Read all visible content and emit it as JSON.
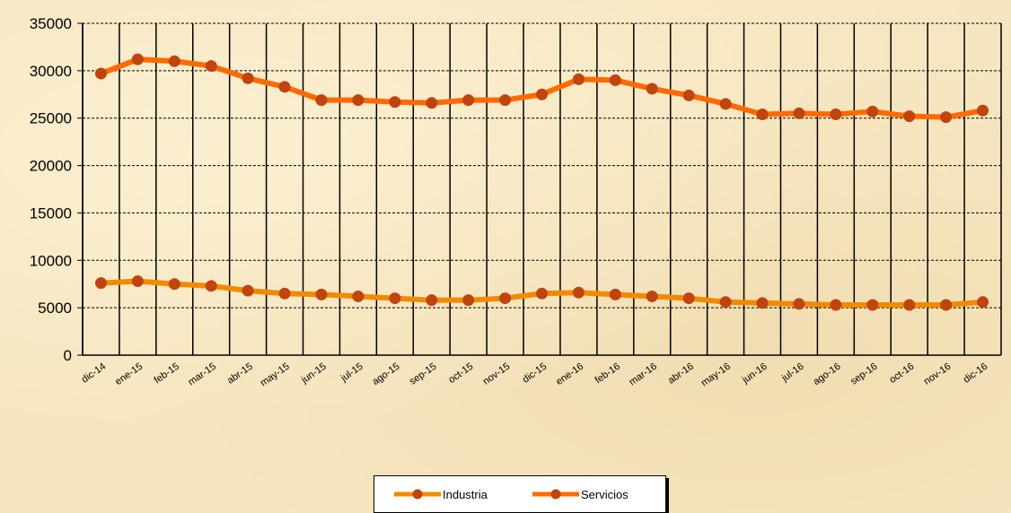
{
  "chart_data": {
    "type": "line",
    "categories": [
      "dic-14",
      "ene-15",
      "feb-15",
      "mar-15",
      "abr-15",
      "may-15",
      "jun-15",
      "jul-15",
      "ago-15",
      "sep-15",
      "oct-15",
      "nov-15",
      "dic-15",
      "ene-16",
      "feb-16",
      "mar-16",
      "abr-16",
      "may-16",
      "jun-16",
      "jul-16",
      "ago-16",
      "sep-16",
      "oct-16",
      "nov-16",
      "dic-16"
    ],
    "series": [
      {
        "name": "Industria",
        "color": "#f28a00",
        "values": [
          7600,
          7800,
          7500,
          7300,
          6800,
          6500,
          6400,
          6200,
          6000,
          5800,
          5800,
          6000,
          6500,
          6600,
          6400,
          6200,
          6000,
          5600,
          5500,
          5400,
          5300,
          5300,
          5300,
          5300,
          5600
        ]
      },
      {
        "name": "Servicios",
        "color": "#ff6a00",
        "values": [
          29700,
          31200,
          31000,
          30500,
          29200,
          28300,
          26900,
          26900,
          26700,
          26600,
          26900,
          26900,
          27500,
          29100,
          29000,
          28100,
          27400,
          26500,
          25400,
          25500,
          25400,
          25700,
          25200,
          25100,
          25800
        ]
      }
    ],
    "ylim": [
      0,
      35000
    ],
    "yticks": [
      0,
      5000,
      10000,
      15000,
      20000,
      25000,
      30000,
      35000
    ],
    "grid": true,
    "legend_position": "bottom"
  },
  "legend": {
    "items": [
      {
        "label": "Industria"
      },
      {
        "label": "Servicios"
      }
    ]
  }
}
